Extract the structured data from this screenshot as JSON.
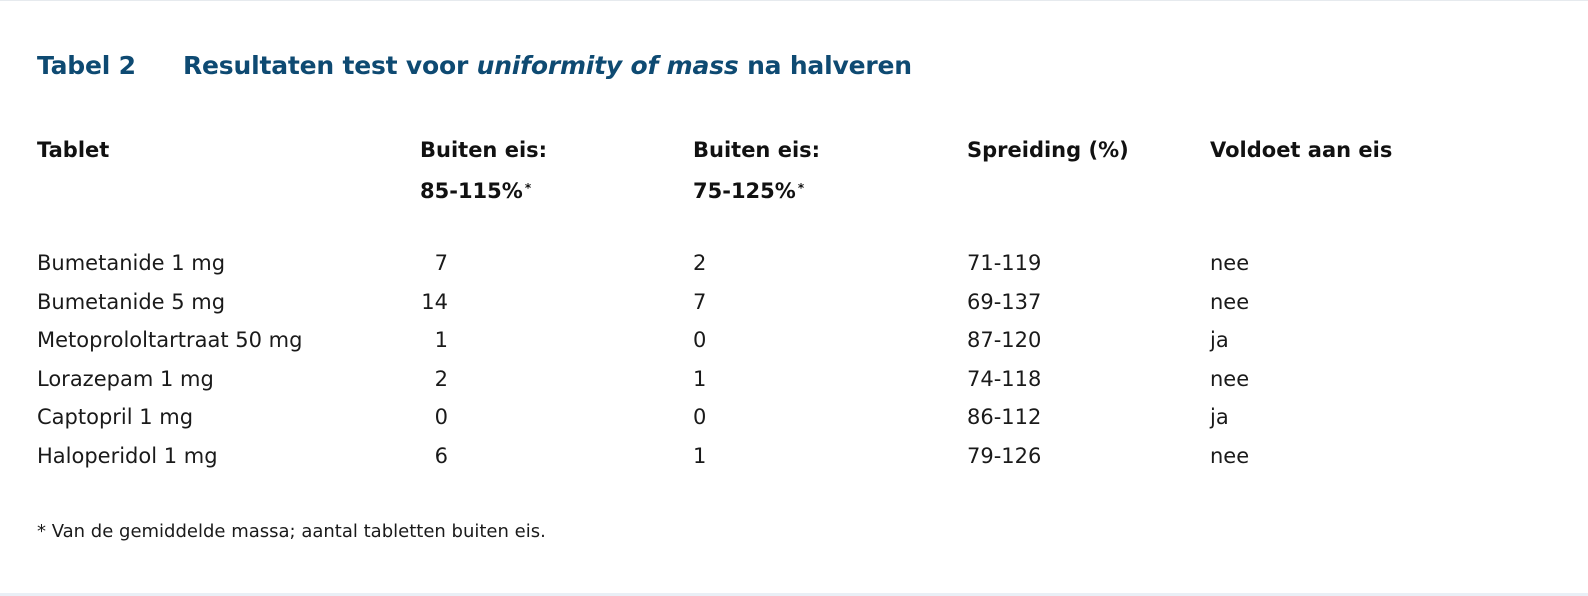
{
  "caption": {
    "number": "Tabel 2",
    "title_before": "Resultaten test voor ",
    "title_italic": "uniformity of mass",
    "title_after": " na halveren"
  },
  "table": {
    "headers": {
      "tablet": "Tablet",
      "col2_line1": "Buiten eis:",
      "col2_line2": "85-115%",
      "col2_mark": "*",
      "col3_line1": "Buiten eis:",
      "col3_line2": "75-125%",
      "col3_mark": "*",
      "spreiding": "Spreiding (%)",
      "voldoet": "Voldoet aan eis"
    },
    "rows": [
      {
        "tablet": "Bumetanide 1 mg",
        "out_85_115": "7",
        "out_75_125": "2",
        "spreiding": "71-119",
        "voldoet": "nee"
      },
      {
        "tablet": "Bumetanide 5 mg",
        "out_85_115": "14",
        "out_75_125": "7",
        "spreiding": "69-137",
        "voldoet": "nee"
      },
      {
        "tablet": "Metoprololtartraat 50 mg",
        "out_85_115": "1",
        "out_75_125": "0",
        "spreiding": "87-120",
        "voldoet": "ja"
      },
      {
        "tablet": "Lorazepam 1 mg",
        "out_85_115": "2",
        "out_75_125": "1",
        "spreiding": "74-118",
        "voldoet": "nee"
      },
      {
        "tablet": "Captopril 1 mg",
        "out_85_115": "0",
        "out_75_125": "0",
        "spreiding": "86-112",
        "voldoet": "ja"
      },
      {
        "tablet": "Haloperidol 1 mg",
        "out_85_115": "6",
        "out_75_125": "1",
        "spreiding": "79-126",
        "voldoet": "nee"
      }
    ]
  },
  "footnote": "* Van de gemiddelde massa; aantal tabletten buiten eis.",
  "colors": {
    "caption": "#0e4a72",
    "text": "#1a1a1a",
    "page_background": "#ffffff",
    "outer_background": "#e9eff6"
  }
}
